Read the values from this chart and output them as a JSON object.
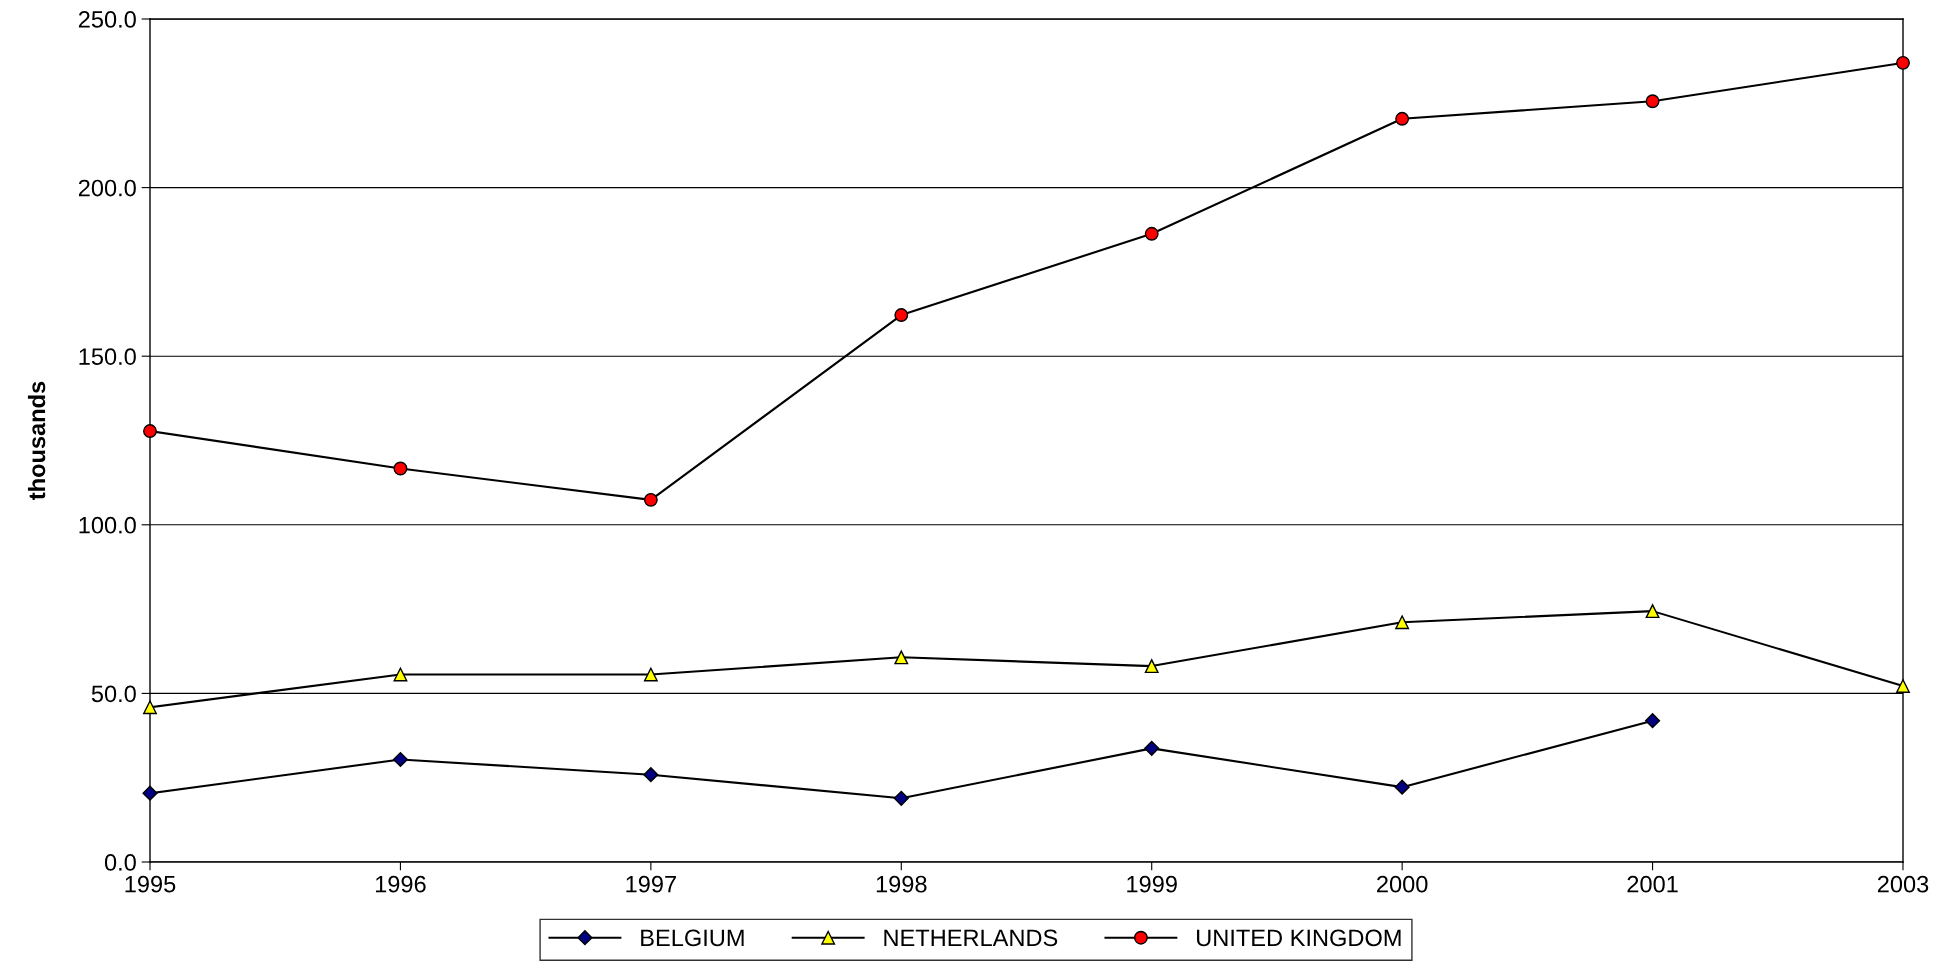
{
  "chart_data": {
    "type": "line",
    "ylabel": "thousands",
    "categories": [
      "1995",
      "1996",
      "1997",
      "1998",
      "1999",
      "2000",
      "2001",
      "2003"
    ],
    "series": [
      {
        "name": "BELGIUM",
        "color": "#000080",
        "marker": "diamond",
        "values": [
          20.4,
          30.4,
          25.9,
          18.9,
          33.7,
          22.2,
          41.9,
          null
        ]
      },
      {
        "name": "NETHERLANDS",
        "color": "#ffff00",
        "marker": "triangle",
        "values": [
          45.9,
          55.6,
          55.6,
          60.7,
          58.1,
          71.1,
          74.4,
          52.2
        ]
      },
      {
        "name": "UNITED KINGDOM",
        "color": "#ff0000",
        "marker": "circle",
        "values": [
          127.8,
          116.7,
          107.4,
          162.2,
          186.3,
          220.4,
          225.6,
          237.0
        ]
      }
    ],
    "ylim": [
      0,
      250
    ],
    "yticks": [
      {
        "value": 0,
        "label": "0.0"
      },
      {
        "value": 50,
        "label": "50.0"
      },
      {
        "value": 100,
        "label": "100.0"
      },
      {
        "value": 150,
        "label": "150.0"
      },
      {
        "value": 200,
        "label": "200.0"
      },
      {
        "value": 250,
        "label": "250.0"
      }
    ],
    "grid": "y",
    "legend": "bottom",
    "line_style": "solid"
  }
}
